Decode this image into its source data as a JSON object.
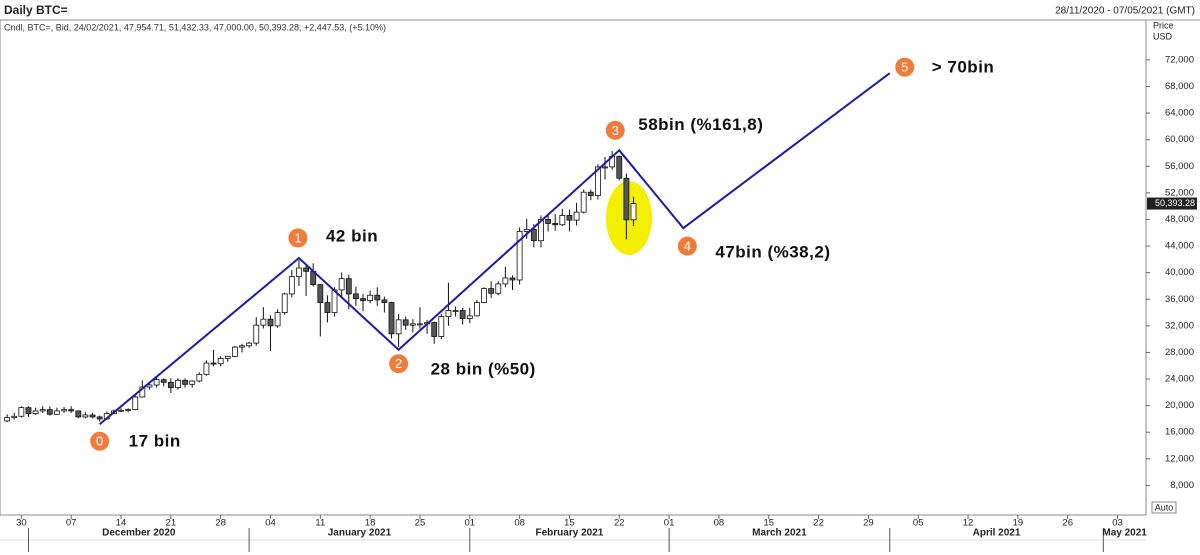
{
  "chart_data": {
    "type": "candlestick",
    "title": "Daily BTC=",
    "date_range": "28/11/2020 - 07/05/2021 (GMT)",
    "info": "Cndl, BTC=, Bid, 24/02/2021, 47,954.71, 51,432.33, 47,000.00, 50,393.28, +2,447.53, (+5.10%)",
    "y_axis_label": "Price",
    "y_axis_unit": "USD",
    "scale_mode": "Auto",
    "last_price_label": "50,393.28",
    "x": [
      "2020-11-28",
      "2020-11-29",
      "2020-11-30",
      "2020-12-01",
      "2020-12-02",
      "2020-12-03",
      "2020-12-04",
      "2020-12-05",
      "2020-12-06",
      "2020-12-07",
      "2020-12-08",
      "2020-12-09",
      "2020-12-10",
      "2020-12-11",
      "2020-12-12",
      "2020-12-13",
      "2020-12-14",
      "2020-12-15",
      "2020-12-16",
      "2020-12-17",
      "2020-12-18",
      "2020-12-19",
      "2020-12-20",
      "2020-12-21",
      "2020-12-22",
      "2020-12-23",
      "2020-12-24",
      "2020-12-25",
      "2020-12-26",
      "2020-12-27",
      "2020-12-28",
      "2020-12-29",
      "2020-12-30",
      "2020-12-31",
      "2021-01-01",
      "2021-01-02",
      "2021-01-03",
      "2021-01-04",
      "2021-01-05",
      "2021-01-06",
      "2021-01-07",
      "2021-01-08",
      "2021-01-09",
      "2021-01-10",
      "2021-01-11",
      "2021-01-12",
      "2021-01-13",
      "2021-01-14",
      "2021-01-15",
      "2021-01-16",
      "2021-01-17",
      "2021-01-18",
      "2021-01-19",
      "2021-01-20",
      "2021-01-21",
      "2021-01-22",
      "2021-01-23",
      "2021-01-24",
      "2021-01-25",
      "2021-01-26",
      "2021-01-27",
      "2021-01-28",
      "2021-01-29",
      "2021-01-30",
      "2021-01-31",
      "2021-02-01",
      "2021-02-02",
      "2021-02-03",
      "2021-02-04",
      "2021-02-05",
      "2021-02-06",
      "2021-02-07",
      "2021-02-08",
      "2021-02-09",
      "2021-02-10",
      "2021-02-11",
      "2021-02-12",
      "2021-02-13",
      "2021-02-14",
      "2021-02-15",
      "2021-02-16",
      "2021-02-17",
      "2021-02-18",
      "2021-02-19",
      "2021-02-20",
      "2021-02-21",
      "2021-02-22",
      "2021-02-23",
      "2021-02-24"
    ],
    "open": [
      17700,
      18200,
      18400,
      19700,
      18800,
      19200,
      19400,
      18700,
      19200,
      19400,
      19200,
      18300,
      18600,
      18300,
      18000,
      18800,
      19200,
      19300,
      19400,
      21300,
      22800,
      23100,
      23900,
      23500,
      22700,
      23800,
      23200,
      23700,
      24700,
      26400,
      26300,
      27100,
      27400,
      28800,
      29000,
      29400,
      32100,
      33000,
      32000,
      34000,
      36800,
      39400,
      40700,
      40200,
      38200,
      35500,
      34000,
      37400,
      39100,
      36800,
      36100,
      35800,
      36600,
      35900,
      35500,
      30800,
      32900,
      32100,
      32300,
      32300,
      32500,
      30400,
      33400,
      34300,
      34300,
      33100,
      33500,
      35500,
      37600,
      36900,
      38300,
      39200,
      38900,
      46200,
      46500,
      44800,
      48000,
      47400,
      47200,
      48600,
      47900,
      49100,
      52100,
      51600,
      55900,
      55900,
      57500,
      54200,
      47954.71
    ],
    "high": [
      18700,
      18900,
      19900,
      19900,
      19700,
      19900,
      19900,
      19700,
      19800,
      19900,
      19300,
      19000,
      18900,
      18500,
      19100,
      19400,
      19600,
      19600,
      21500,
      23800,
      23300,
      24300,
      24100,
      24100,
      24100,
      24100,
      23800,
      25000,
      26800,
      28400,
      27400,
      27500,
      29000,
      29300,
      29600,
      33300,
      34800,
      33600,
      34500,
      37000,
      40400,
      41900,
      41300,
      41400,
      38300,
      36600,
      37800,
      40000,
      39700,
      37900,
      36800,
      37300,
      37800,
      36400,
      35600,
      33800,
      33400,
      33000,
      34800,
      32900,
      32600,
      33800,
      38500,
      34900,
      34700,
      34700,
      35900,
      37800,
      38700,
      38700,
      40900,
      39600,
      46800,
      48100,
      47300,
      48600,
      48800,
      48800,
      49600,
      49500,
      50500,
      52500,
      52500,
      56300,
      57400,
      58300,
      57600,
      54900,
      51432.33
    ],
    "low": [
      17500,
      17900,
      18200,
      18300,
      18600,
      18900,
      18500,
      18600,
      18900,
      18900,
      18100,
      18100,
      18100,
      17600,
      17900,
      18700,
      19000,
      19000,
      19300,
      21200,
      22400,
      22700,
      22900,
      21900,
      22400,
      22700,
      22700,
      23500,
      24500,
      25900,
      25900,
      26600,
      27300,
      28000,
      28700,
      29000,
      31600,
      28200,
      31700,
      33700,
      36300,
      38000,
      36500,
      37900,
      30400,
      32500,
      33400,
      36400,
      34500,
      35000,
      34200,
      35400,
      35000,
      34000,
      30100,
      28800,
      31400,
      31000,
      31600,
      30800,
      29300,
      30000,
      32000,
      33400,
      32200,
      32400,
      33400,
      35400,
      36200,
      36600,
      37800,
      37400,
      38200,
      45100,
      43800,
      43800,
      46200,
      46300,
      47000,
      46200,
      47100,
      48900,
      50900,
      51000,
      54000,
      55500,
      53900,
      45000,
      47000
    ],
    "close": [
      18200,
      18400,
      19700,
      18800,
      19200,
      19400,
      18700,
      19200,
      19400,
      19200,
      18300,
      18600,
      18300,
      18000,
      18800,
      19200,
      19300,
      19400,
      21300,
      22800,
      23100,
      23900,
      23500,
      22700,
      23800,
      23200,
      23700,
      24700,
      26400,
      26300,
      27100,
      27400,
      28800,
      29000,
      29400,
      32100,
      33000,
      32000,
      34000,
      36800,
      39400,
      40700,
      40200,
      38200,
      35500,
      34000,
      37400,
      39100,
      36800,
      36100,
      35800,
      36600,
      35900,
      35500,
      30800,
      32900,
      32100,
      32300,
      32300,
      32500,
      30400,
      33400,
      34300,
      34300,
      33100,
      33500,
      35500,
      37600,
      36900,
      38300,
      39200,
      38900,
      46200,
      46500,
      44800,
      48000,
      47400,
      47200,
      48600,
      47900,
      49100,
      52100,
      51600,
      55900,
      55900,
      57500,
      54200,
      47950,
      50393.28
    ],
    "up_color": "#ffffff",
    "down_color": "#555555",
    "wave_color": "#1c1ca8",
    "marker_color": "#f07c3c",
    "highlight_color": "#f4ef00",
    "waves": {
      "labels": [
        "0",
        "1",
        "2",
        "3",
        "4",
        "5"
      ],
      "texts": [
        "17 bin",
        "42 bin",
        "28 bin (%50)",
        "58bin (%161,8)",
        "47bin (%38,2)",
        "> 70bin"
      ],
      "x": [
        "2020-12-11",
        "2021-01-08",
        "2021-01-22",
        "2021-02-22",
        "2021-03-03",
        "2021-04-01"
      ],
      "y": [
        17200,
        42200,
        28400,
        58400,
        46700,
        70000
      ]
    },
    "xlim": [
      "2020-11-27",
      "2021-05-07"
    ],
    "xticks": [
      {
        "value": "2020-11-30",
        "label": "30"
      },
      {
        "value": "2020-12-07",
        "label": "07"
      },
      {
        "value": "2020-12-14",
        "label": "14"
      },
      {
        "value": "2020-12-21",
        "label": "21"
      },
      {
        "value": "2020-12-28",
        "label": "28"
      },
      {
        "value": "2021-01-04",
        "label": "04"
      },
      {
        "value": "2021-01-11",
        "label": "11"
      },
      {
        "value": "2021-01-18",
        "label": "18"
      },
      {
        "value": "2021-01-25",
        "label": "25"
      },
      {
        "value": "2021-02-01",
        "label": "01"
      },
      {
        "value": "2021-02-08",
        "label": "08"
      },
      {
        "value": "2021-02-15",
        "label": "15"
      },
      {
        "value": "2021-02-22",
        "label": "22"
      },
      {
        "value": "2021-03-01",
        "label": "01"
      },
      {
        "value": "2021-03-08",
        "label": "08"
      },
      {
        "value": "2021-03-15",
        "label": "15"
      },
      {
        "value": "2021-03-22",
        "label": "22"
      },
      {
        "value": "2021-03-29",
        "label": "29"
      },
      {
        "value": "2021-04-05",
        "label": "05"
      },
      {
        "value": "2021-04-12",
        "label": "12"
      },
      {
        "value": "2021-04-19",
        "label": "19"
      },
      {
        "value": "2021-04-26",
        "label": "26"
      },
      {
        "value": "2021-05-03",
        "label": "03"
      }
    ],
    "months": [
      {
        "value": "2020-12",
        "label": "December 2020"
      },
      {
        "value": "2021-01",
        "label": "January 2021"
      },
      {
        "value": "2021-02",
        "label": "February 2021"
      },
      {
        "value": "2021-03",
        "label": "March 2021"
      },
      {
        "value": "2021-04",
        "label": "April 2021"
      },
      {
        "value": "2021-05",
        "label": "May 2021"
      }
    ],
    "ylim": [
      4000,
      78000
    ],
    "yticks": [
      {
        "value": 8000,
        "label": "8,000"
      },
      {
        "value": 12000,
        "label": "12,000"
      },
      {
        "value": 16000,
        "label": "16,000"
      },
      {
        "value": 20000,
        "label": "20,000"
      },
      {
        "value": 24000,
        "label": "24,000"
      },
      {
        "value": 28000,
        "label": "28,000"
      },
      {
        "value": 32000,
        "label": "32,000"
      },
      {
        "value": 36000,
        "label": "36,000"
      },
      {
        "value": 40000,
        "label": "40,000"
      },
      {
        "value": 44000,
        "label": "44,000"
      },
      {
        "value": 48000,
        "label": "48,000"
      },
      {
        "value": 52000,
        "label": "52,000"
      },
      {
        "value": 56000,
        "label": "56,000"
      },
      {
        "value": 60000,
        "label": "60,000"
      },
      {
        "value": 64000,
        "label": "64,000"
      },
      {
        "value": 68000,
        "label": "68,000"
      },
      {
        "value": 72000,
        "label": "72,000"
      }
    ]
  }
}
